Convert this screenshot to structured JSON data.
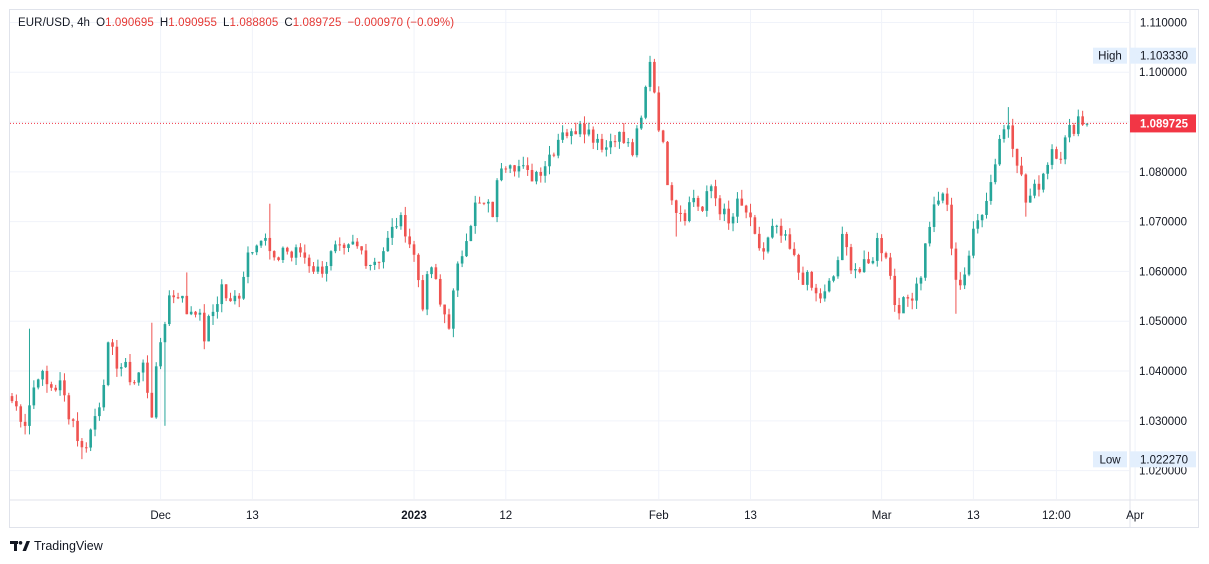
{
  "header": {
    "symbol": "EUR/USD",
    "interval": "4h",
    "o_label": "O",
    "open": "1.090695",
    "h_label": "H",
    "high": "1.090955",
    "l_label": "L",
    "low": "1.088805",
    "c_label": "C",
    "close": "1.089725",
    "change": "−0.000970 (−0.09%)"
  },
  "watermark": {
    "icon": "tradingview-logo-icon",
    "text": "TradingView"
  },
  "colors": {
    "up": "#26a69a",
    "down": "#ef5350",
    "last_price": "#f23645",
    "grid": "#f0f3fa",
    "axis_text": "#131722",
    "label_bg": "#e3effd"
  },
  "chart_data": {
    "type": "candlestick",
    "symbol": "EUR/USD",
    "interval": "4h",
    "y_axis_position": "right",
    "ylim": [
      1.0143,
      1.1125
    ],
    "y_ticks": [
      "1.020000",
      "1.030000",
      "1.040000",
      "1.050000",
      "1.060000",
      "1.070000",
      "1.080000",
      "1.090000",
      "1.100000",
      "1.110000"
    ],
    "x_ticks": [
      {
        "label": "Dec",
        "bold": false,
        "index": 34
      },
      {
        "label": "13",
        "bold": false,
        "index": 55
      },
      {
        "label": "2023",
        "bold": true,
        "index": 92
      },
      {
        "label": "12",
        "bold": false,
        "index": 113
      },
      {
        "label": "Feb",
        "bold": false,
        "index": 148
      },
      {
        "label": "13",
        "bold": false,
        "index": 169
      },
      {
        "label": "Mar",
        "bold": false,
        "index": 199
      },
      {
        "label": "13",
        "bold": false,
        "index": 220
      },
      {
        "label": "12:00",
        "bold": false,
        "index": 239
      },
      {
        "label": "Apr",
        "bold": false,
        "index": 257
      }
    ],
    "high_label": {
      "label": "High",
      "value": "1.103330"
    },
    "low_label": {
      "label": "Low",
      "value": "1.022270"
    },
    "last_price": {
      "value": 1.089725,
      "label": "1.089725"
    },
    "close_path": [
      [
        0,
        1.034
      ],
      [
        3,
        1.03
      ],
      [
        6,
        1.04
      ],
      [
        8,
        1.037
      ],
      [
        11,
        1.037
      ],
      [
        13,
        1.032
      ],
      [
        14,
        1.03
      ],
      [
        16,
        1.024
      ],
      [
        18,
        1.028
      ],
      [
        20,
        1.034
      ],
      [
        22,
        1.044
      ],
      [
        24,
        1.042
      ],
      [
        26,
        1.04
      ],
      [
        28,
        1.038
      ],
      [
        30,
        1.041
      ],
      [
        32,
        1.032
      ],
      [
        34,
        1.046
      ],
      [
        36,
        1.055
      ],
      [
        38,
        1.056
      ],
      [
        40,
        1.052
      ],
      [
        42,
        1.053
      ],
      [
        44,
        1.047
      ],
      [
        46,
        1.052
      ],
      [
        48,
        1.057
      ],
      [
        50,
        1.053
      ],
      [
        52,
        1.056
      ],
      [
        54,
        1.064
      ],
      [
        56,
        1.067
      ],
      [
        58,
        1.066
      ],
      [
        60,
        1.061
      ],
      [
        62,
        1.065
      ],
      [
        64,
        1.063
      ],
      [
        66,
        1.064
      ],
      [
        68,
        1.062
      ],
      [
        70,
        1.06
      ],
      [
        72,
        1.062
      ],
      [
        74,
        1.064
      ],
      [
        76,
        1.063
      ],
      [
        78,
        1.065
      ],
      [
        80,
        1.064
      ],
      [
        82,
        1.062
      ],
      [
        84,
        1.063
      ],
      [
        86,
        1.066
      ],
      [
        88,
        1.07
      ],
      [
        90,
        1.069
      ],
      [
        92,
        1.063
      ],
      [
        94,
        1.054
      ],
      [
        96,
        1.061
      ],
      [
        98,
        1.053
      ],
      [
        100,
        1.05
      ],
      [
        102,
        1.06
      ],
      [
        104,
        1.068
      ],
      [
        106,
        1.073
      ],
      [
        108,
        1.073
      ],
      [
        110,
        1.072
      ],
      [
        112,
        1.082
      ],
      [
        114,
        1.083
      ],
      [
        116,
        1.081
      ],
      [
        118,
        1.079
      ],
      [
        120,
        1.08
      ],
      [
        122,
        1.082
      ],
      [
        124,
        1.085
      ],
      [
        126,
        1.089
      ],
      [
        128,
        1.087
      ],
      [
        130,
        1.091
      ],
      [
        132,
        1.088
      ],
      [
        134,
        1.087
      ],
      [
        136,
        1.085
      ],
      [
        138,
        1.088
      ],
      [
        140,
        1.086
      ],
      [
        142,
        1.084
      ],
      [
        144,
        1.09
      ],
      [
        146,
        1.103
      ],
      [
        148,
        1.09
      ],
      [
        150,
        1.079
      ],
      [
        152,
        1.073
      ],
      [
        154,
        1.072
      ],
      [
        156,
        1.075
      ],
      [
        158,
        1.072
      ],
      [
        160,
        1.077
      ],
      [
        162,
        1.073
      ],
      [
        164,
        1.069
      ],
      [
        166,
        1.073
      ],
      [
        168,
        1.072
      ],
      [
        170,
        1.066
      ],
      [
        172,
        1.064
      ],
      [
        174,
        1.068
      ],
      [
        176,
        1.067
      ],
      [
        178,
        1.064
      ],
      [
        180,
        1.06
      ],
      [
        182,
        1.058
      ],
      [
        184,
        1.055
      ],
      [
        186,
        1.055
      ],
      [
        188,
        1.059
      ],
      [
        190,
        1.066
      ],
      [
        192,
        1.062
      ],
      [
        194,
        1.06
      ],
      [
        196,
        1.061
      ],
      [
        198,
        1.066
      ],
      [
        200,
        1.064
      ],
      [
        202,
        1.054
      ],
      [
        204,
        1.053
      ],
      [
        206,
        1.056
      ],
      [
        208,
        1.06
      ],
      [
        210,
        1.07
      ],
      [
        212,
        1.075
      ],
      [
        214,
        1.073
      ],
      [
        216,
        1.057
      ],
      [
        218,
        1.06
      ],
      [
        220,
        1.067
      ],
      [
        222,
        1.073
      ],
      [
        224,
        1.078
      ],
      [
        226,
        1.087
      ],
      [
        228,
        1.09
      ],
      [
        230,
        1.083
      ],
      [
        232,
        1.074
      ],
      [
        234,
        1.076
      ],
      [
        236,
        1.08
      ],
      [
        238,
        1.085
      ],
      [
        240,
        1.084
      ],
      [
        242,
        1.088
      ],
      [
        244,
        1.091
      ],
      [
        246,
        1.0897
      ]
    ],
    "spikes": [
      {
        "index": 4,
        "high": 1.0485
      },
      {
        "index": 16,
        "low": 1.0223
      },
      {
        "index": 32,
        "high": 1.0497
      },
      {
        "index": 35,
        "low": 1.029
      },
      {
        "index": 40,
        "high": 1.0598
      },
      {
        "index": 59,
        "high": 1.0736
      },
      {
        "index": 94,
        "low": 1.052
      },
      {
        "index": 100,
        "low": 1.0483
      },
      {
        "index": 146,
        "high": 1.1033
      },
      {
        "index": 150,
        "low": 1.0795
      },
      {
        "index": 152,
        "low": 1.067
      },
      {
        "index": 190,
        "high": 1.069
      },
      {
        "index": 204,
        "low": 1.0525
      },
      {
        "index": 216,
        "low": 1.0515
      },
      {
        "index": 212,
        "high": 1.076
      },
      {
        "index": 228,
        "high": 1.093
      },
      {
        "index": 232,
        "low": 1.071
      },
      {
        "index": 244,
        "high": 1.0925
      }
    ]
  }
}
